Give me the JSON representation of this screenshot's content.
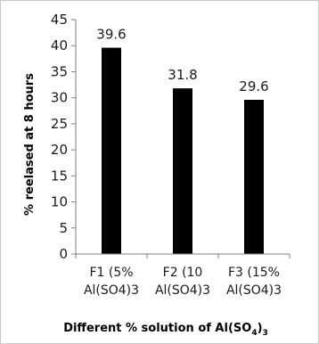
{
  "chart_data": {
    "type": "bar",
    "categories": [
      [
        "F1 (5%",
        "Al(SO4)3"
      ],
      [
        "F2 (10",
        "Al(SO4)3"
      ],
      [
        "F3 (15%",
        "Al(SO4)3"
      ]
    ],
    "values": [
      39.6,
      31.8,
      29.6
    ],
    "data_labels": [
      "39.6",
      "31.8",
      "29.6"
    ],
    "title": "",
    "xlabel": "Different % solution of Al(SO4)3",
    "xlabel_parts": {
      "main": "Different % solution of Al(SO",
      "sub": "4",
      "close": ")",
      "sub2": "3"
    },
    "ylabel": "% reelased at 8 hours",
    "ylim": [
      0,
      45
    ],
    "yticks": [
      0,
      5,
      10,
      15,
      20,
      25,
      30,
      35,
      40,
      45
    ],
    "grid": false,
    "legend": "none",
    "bar_color": "#000000"
  }
}
